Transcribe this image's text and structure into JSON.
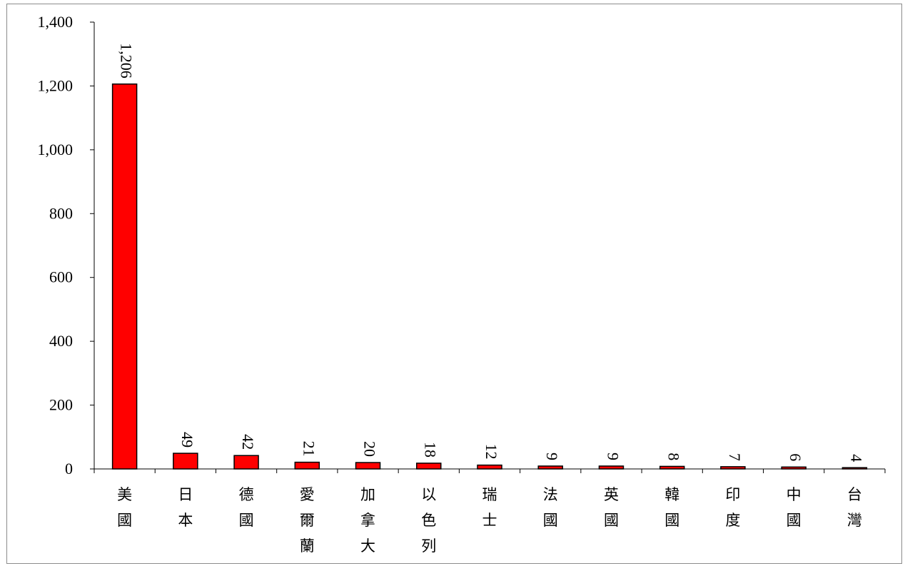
{
  "chart_data": {
    "type": "bar",
    "title": "",
    "xlabel": "",
    "ylabel": "",
    "ylim": [
      0,
      1400
    ],
    "yticks": [
      0,
      200,
      400,
      600,
      800,
      1000,
      1200,
      1400
    ],
    "ytick_labels": [
      "0",
      "200",
      "400",
      "600",
      "800",
      "1,000",
      "1,200",
      "1,400"
    ],
    "grid": false,
    "legend": "none",
    "categories": [
      "美國",
      "日本",
      "德國",
      "愛爾蘭",
      "加拿大",
      "以色列",
      "瑞士",
      "法國",
      "英國",
      "韓國",
      "印度",
      "中國",
      "台灣"
    ],
    "values": [
      1206,
      49,
      42,
      21,
      20,
      18,
      12,
      9,
      9,
      8,
      7,
      6,
      4
    ],
    "value_labels": [
      "1,206",
      "49",
      "42",
      "21",
      "20",
      "18",
      "12",
      "9",
      "9",
      "8",
      "7",
      "6",
      "4"
    ],
    "bar_color": "#ff0000",
    "bar_edge_color": "#000000"
  }
}
